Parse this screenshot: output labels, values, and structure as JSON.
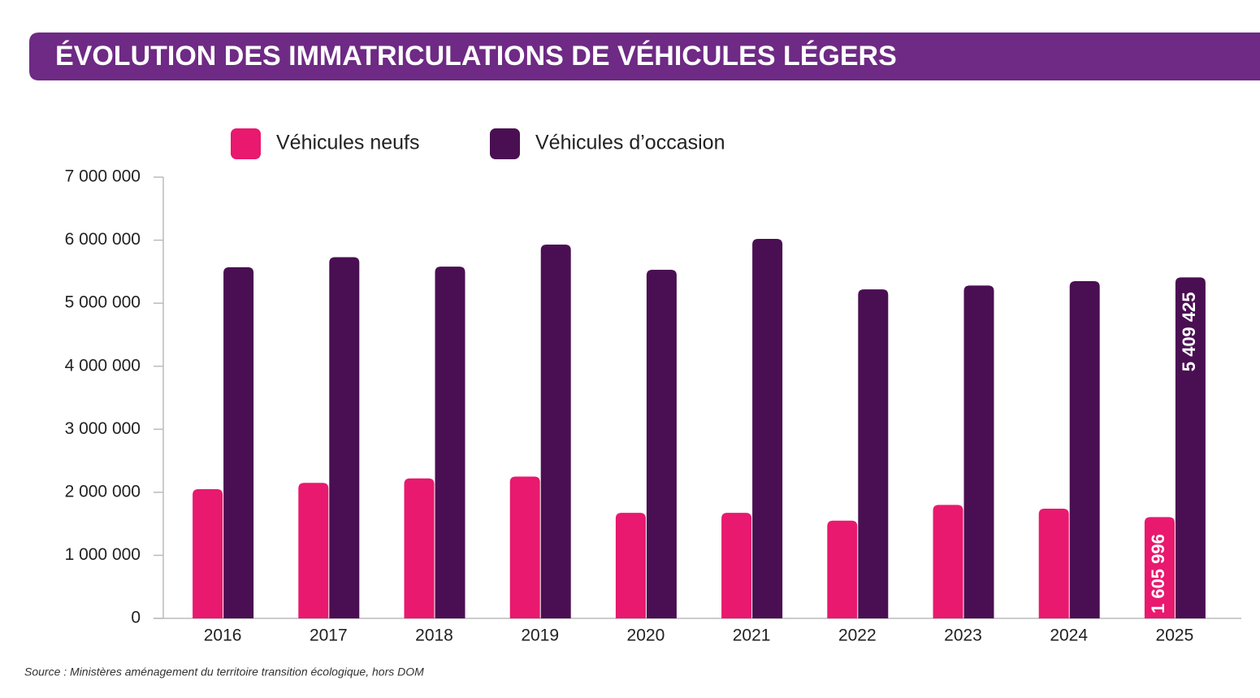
{
  "chart_data": {
    "type": "bar",
    "title": "ÉVOLUTION DES IMMATRICULATIONS DE VÉHICULES LÉGERS",
    "source": "Source : Ministères aménagement du territoire transition écologique, hors DOM",
    "categories": [
      "2016",
      "2017",
      "2018",
      "2019",
      "2020",
      "2021",
      "2022",
      "2023",
      "2024",
      "2025"
    ],
    "series": [
      {
        "name": "Véhicules neufs",
        "color": "#e8196e",
        "values": [
          2050000,
          2150000,
          2220000,
          2250000,
          1675000,
          1675000,
          1550000,
          1800000,
          1740000,
          1605996
        ],
        "value_labels": [
          null,
          null,
          null,
          null,
          null,
          null,
          null,
          null,
          null,
          "1 605 996"
        ]
      },
      {
        "name": "Véhicules d’occasion",
        "color": "#4a0f52",
        "values": [
          5570000,
          5730000,
          5580000,
          5930000,
          5530000,
          6020000,
          5220000,
          5280000,
          5350000,
          5409425
        ],
        "value_labels": [
          null,
          null,
          null,
          null,
          null,
          null,
          null,
          null,
          null,
          "5 409 425"
        ]
      }
    ],
    "ylim": [
      0,
      7000000
    ],
    "yticks": [
      {
        "value": 0,
        "label": "0"
      },
      {
        "value": 1000000,
        "label": "1 000 000"
      },
      {
        "value": 2000000,
        "label": "2 000 000"
      },
      {
        "value": 3000000,
        "label": "3 000 000"
      },
      {
        "value": 4000000,
        "label": "4 000 000"
      },
      {
        "value": 5000000,
        "label": "5 000 000"
      },
      {
        "value": 6000000,
        "label": "6 000 000"
      },
      {
        "value": 7000000,
        "label": "7 000 000"
      }
    ],
    "grid": false,
    "legend": "top"
  }
}
